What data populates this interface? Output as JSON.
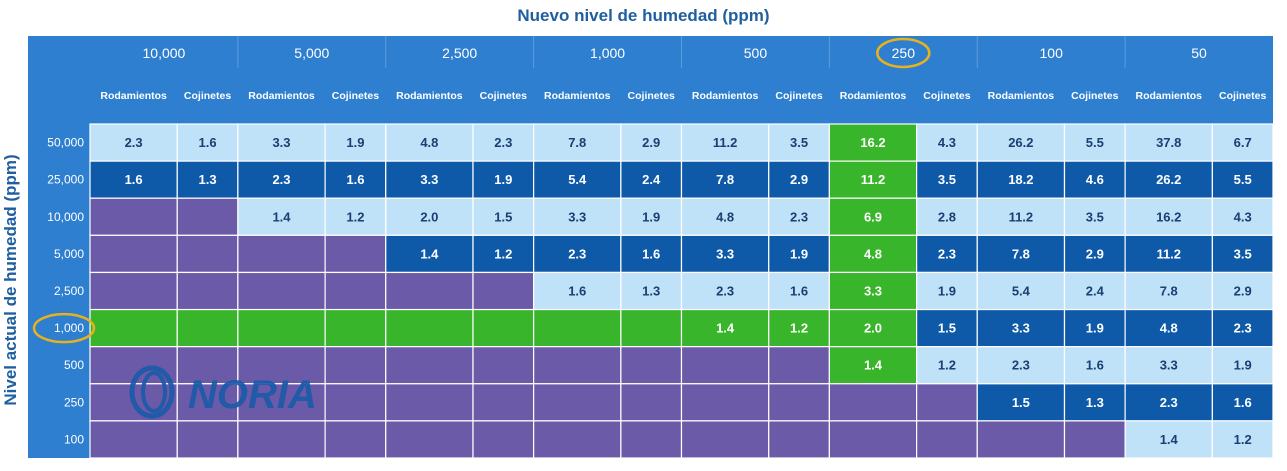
{
  "title": "Nuevo nivel de humedad (ppm)",
  "ylabel": "Nivel actual de humedad (ppm)",
  "sublabels": [
    "Rodamientos",
    "Cojinetes"
  ],
  "logo_text": "NORIA",
  "colors": {
    "header": "#2f7fd0",
    "light": "#bfe2f8",
    "dark": "#0f5aa8",
    "purple": "#6a5aa8",
    "green": "#38b52a",
    "highlight_ring": "#e8b11e",
    "grid_line": "#ffffff"
  },
  "chart_data": {
    "type": "table",
    "title": "Nuevo nivel de humedad (ppm)",
    "row_axis_label": "Nivel actual de humedad (ppm)",
    "columns": [
      "10,000",
      "5,000",
      "2,500",
      "1,000",
      "500",
      "250",
      "100",
      "50"
    ],
    "rows": [
      "50,000",
      "25,000",
      "10,000",
      "5,000",
      "2,500",
      "1,000",
      "500",
      "250",
      "100"
    ],
    "highlighted_column": "250",
    "highlighted_row": "1,000",
    "cells": [
      [
        [
          "2.3",
          "1.6"
        ],
        [
          "3.3",
          "1.9"
        ],
        [
          "4.8",
          "2.3"
        ],
        [
          "7.8",
          "2.9"
        ],
        [
          "11.2",
          "3.5"
        ],
        [
          "16.2",
          "4.3"
        ],
        [
          "26.2",
          "5.5"
        ],
        [
          "37.8",
          "6.7"
        ]
      ],
      [
        [
          "1.6",
          "1.3"
        ],
        [
          "2.3",
          "1.6"
        ],
        [
          "3.3",
          "1.9"
        ],
        [
          "5.4",
          "2.4"
        ],
        [
          "7.8",
          "2.9"
        ],
        [
          "11.2",
          "3.5"
        ],
        [
          "18.2",
          "4.6"
        ],
        [
          "26.2",
          "5.5"
        ]
      ],
      [
        null,
        [
          "1.4",
          "1.2"
        ],
        [
          "2.0",
          "1.5"
        ],
        [
          "3.3",
          "1.9"
        ],
        [
          "4.8",
          "2.3"
        ],
        [
          "6.9",
          "2.8"
        ],
        [
          "11.2",
          "3.5"
        ],
        [
          "16.2",
          "4.3"
        ]
      ],
      [
        null,
        null,
        [
          "1.4",
          "1.2"
        ],
        [
          "2.3",
          "1.6"
        ],
        [
          "3.3",
          "1.9"
        ],
        [
          "4.8",
          "2.3"
        ],
        [
          "7.8",
          "2.9"
        ],
        [
          "11.2",
          "3.5"
        ]
      ],
      [
        null,
        null,
        null,
        [
          "1.6",
          "1.3"
        ],
        [
          "2.3",
          "1.6"
        ],
        [
          "3.3",
          "1.9"
        ],
        [
          "5.4",
          "2.4"
        ],
        [
          "7.8",
          "2.9"
        ]
      ],
      [
        null,
        null,
        null,
        null,
        [
          "1.4",
          "1.2"
        ],
        [
          "2.0",
          "1.5"
        ],
        [
          "3.3",
          "1.9"
        ],
        [
          "4.8",
          "2.3"
        ]
      ],
      [
        null,
        null,
        null,
        null,
        null,
        [
          "1.4",
          "1.2"
        ],
        [
          "2.3",
          "1.6"
        ],
        [
          "3.3",
          "1.9"
        ]
      ],
      [
        null,
        null,
        null,
        null,
        null,
        null,
        [
          "1.5",
          "1.3"
        ],
        [
          "2.3",
          "1.6"
        ]
      ],
      [
        null,
        null,
        null,
        null,
        null,
        null,
        null,
        [
          "1.4",
          "1.2"
        ]
      ]
    ]
  }
}
